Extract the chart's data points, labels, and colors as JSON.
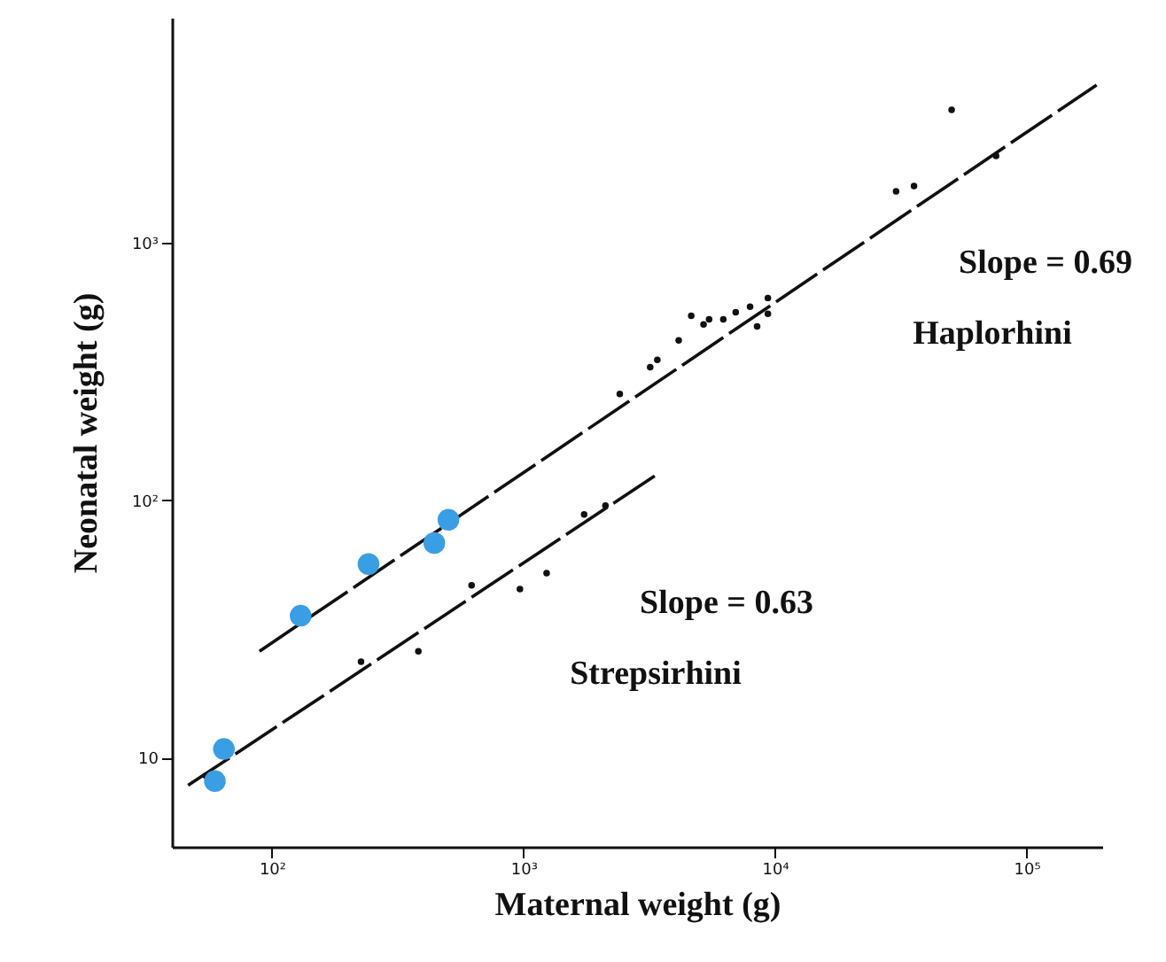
{
  "chart_data": {
    "type": "scatter",
    "xlabel": "Maternal weight (g)",
    "ylabel": "Neonatal weight (g)",
    "log": "xy",
    "grid": false,
    "xlim": [
      40,
      200000
    ],
    "ylim": [
      4.5,
      7500
    ],
    "xticks": [
      {
        "value": 100,
        "label": "10²"
      },
      {
        "value": 1000,
        "label": "10³"
      },
      {
        "value": 10000,
        "label": "10⁴"
      },
      {
        "value": 100000,
        "label": "10⁵"
      }
    ],
    "yticks": [
      10,
      {
        "value": 100,
        "label": "10²"
      },
      {
        "value": 1000,
        "label": "10³"
      }
    ],
    "series": [
      {
        "type": "line",
        "color": "#111111",
        "line_style": "dashed",
        "marker": "none",
        "x": [
          89.2,
          190000
        ],
        "values": [
          25.9,
          4110
        ]
      },
      {
        "type": "line",
        "color": "#111111",
        "line_style": "dashed",
        "marker": "none",
        "x": [
          46.4,
          3350
        ],
        "values": [
          7.8,
          125
        ]
      },
      {
        "color": "#111111",
        "marker": "circle",
        "x": [
          54.6,
          226,
          382,
          622,
          968,
          1236,
          1742,
          2118
        ],
        "values": [
          8.5,
          23.6,
          25.9,
          46.7,
          45.2,
          52.1,
          88.1,
          95.3
        ]
      },
      {
        "color": "#111111",
        "marker": "circle",
        "x": [
          2415,
          3190,
          3405,
          4140,
          4645,
          5200,
          5470,
          6230,
          6980,
          7960,
          8490,
          9370,
          9370,
          30300,
          35700,
          50400,
          75700
        ],
        "values": [
          259,
          329,
          351,
          418,
          521,
          482,
          505,
          505,
          538,
          565,
          474,
          530,
          611,
          1585,
          1664,
          3290,
          2180
        ]
      },
      {
        "color": "#3a9ee4",
        "marker": "circle",
        "x": [
          59.3,
          64.4,
          130,
          242,
          442,
          503
        ],
        "values": [
          8.1,
          10.8,
          35.6,
          56.5,
          68.2,
          84
        ]
      }
    ],
    "annotations": [
      "Slope = 0.69",
      "Haplorhini",
      "Slope = 0.63",
      "Strepsirhini"
    ]
  }
}
